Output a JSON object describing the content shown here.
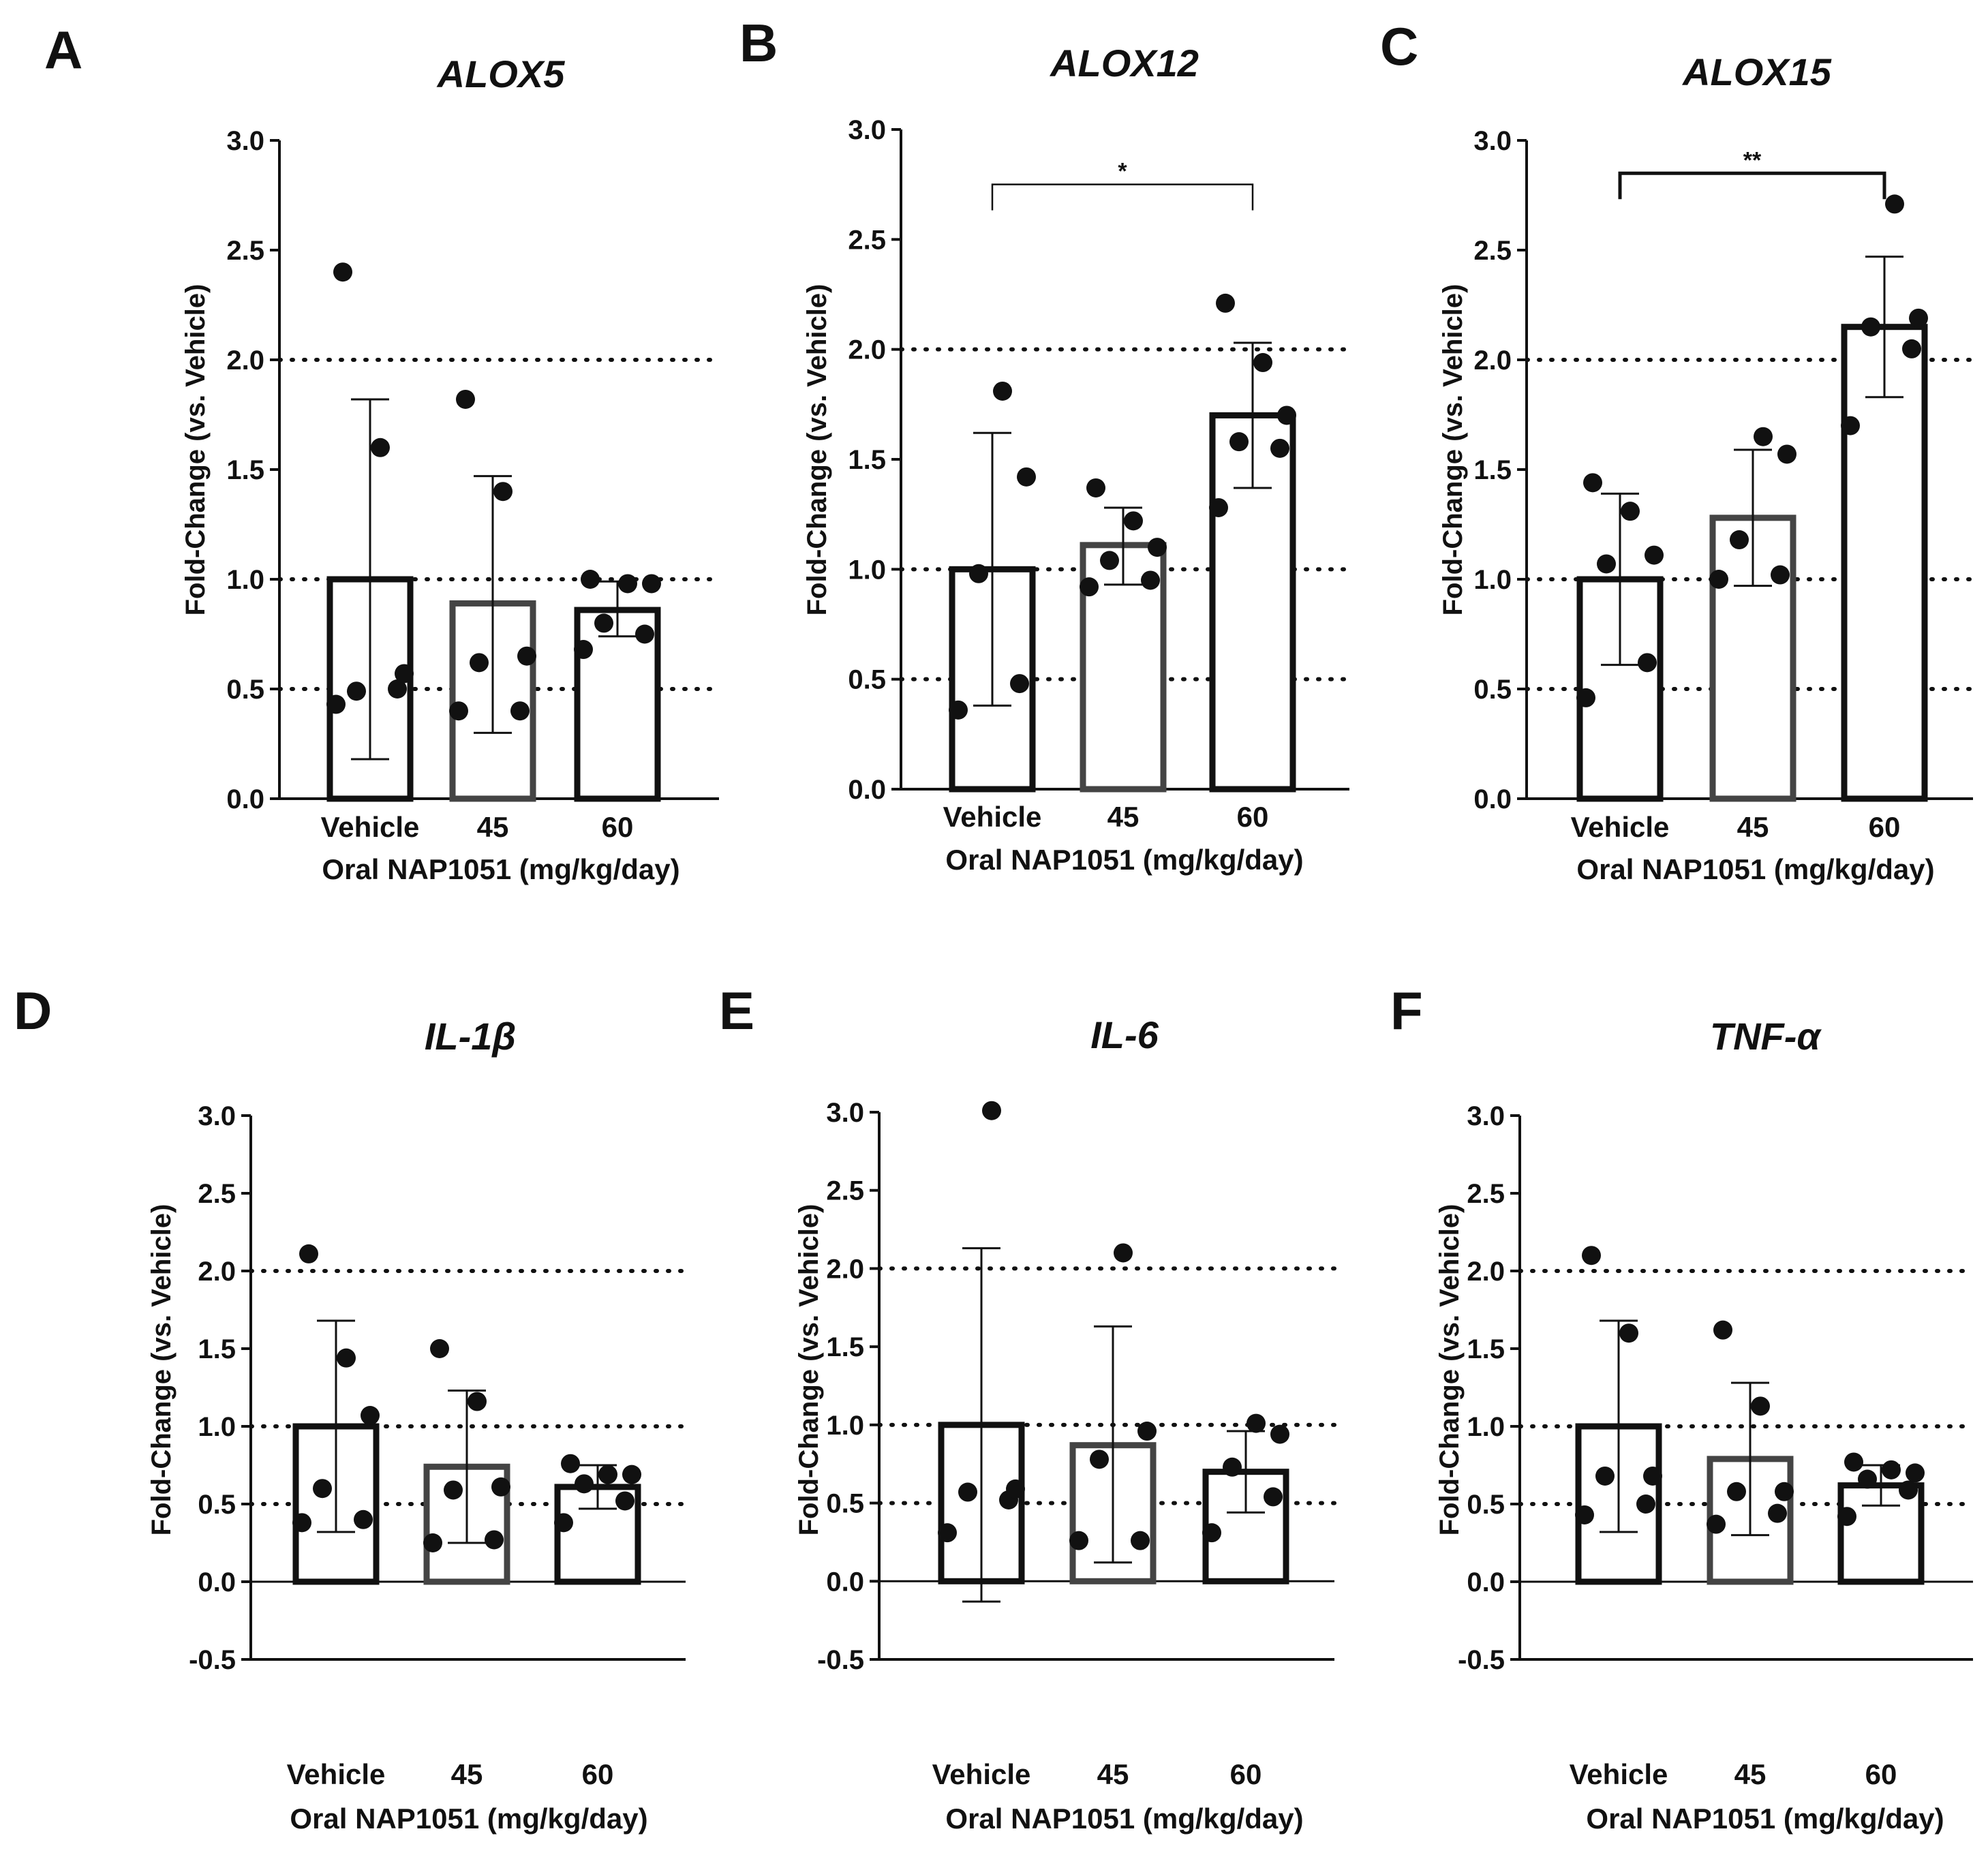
{
  "chart_data": [
    {
      "type": "bar",
      "panel": "A",
      "title": "ALOX5",
      "xlabel": "Oral NAP1051 (mg/kg/day)",
      "ylabel": "Fold-Change (vs. Vehicle)",
      "ylim": [
        0,
        3.0
      ],
      "yticks": [
        "0.0",
        "0.5",
        "1.0",
        "1.5",
        "2.0",
        "2.5",
        "3.0"
      ],
      "reference_lines": [
        0.5,
        1.0,
        2.0
      ],
      "categories": [
        "Vehicle",
        "45",
        "60"
      ],
      "values": [
        1.0,
        0.89,
        0.86
      ],
      "error_low": [
        0.18,
        0.3,
        0.74
      ],
      "error_high": [
        1.82,
        1.47,
        0.99
      ],
      "points": [
        [
          0.43,
          0.5,
          0.49,
          0.57,
          1.6,
          2.4
        ],
        [
          0.4,
          0.4,
          0.62,
          0.65,
          1.4,
          1.82
        ],
        [
          0.68,
          0.75,
          0.8,
          0.98,
          0.98,
          1.0
        ]
      ],
      "significance": null
    },
    {
      "type": "bar",
      "panel": "B",
      "title": "ALOX12",
      "xlabel": "Oral NAP1051 (mg/kg/day)",
      "ylabel": "Fold-Change (vs. Vehicle)",
      "ylim": [
        0,
        3.0
      ],
      "yticks": [
        "0.0",
        "0.5",
        "1.0",
        "1.5",
        "2.0",
        "2.5",
        "3.0"
      ],
      "reference_lines": [
        0.5,
        1.0,
        2.0
      ],
      "categories": [
        "Vehicle",
        "45",
        "60"
      ],
      "values": [
        1.0,
        1.11,
        1.7
      ],
      "error_low": [
        0.38,
        0.93,
        1.37
      ],
      "error_high": [
        1.62,
        1.28,
        2.03
      ],
      "points": [
        [
          0.36,
          0.48,
          0.98,
          1.42,
          1.81
        ],
        [
          0.92,
          0.95,
          1.04,
          1.1,
          1.22,
          1.37
        ],
        [
          1.28,
          1.55,
          1.58,
          1.7,
          1.94,
          2.21
        ]
      ],
      "significance": {
        "from": 0,
        "to": 2,
        "label": "*",
        "y": 2.75
      }
    },
    {
      "type": "bar",
      "panel": "C",
      "title": "ALOX15",
      "xlabel": "Oral NAP1051 (mg/kg/day)",
      "ylabel": "Fold-Change (vs. Vehicle)",
      "ylim": [
        0,
        3.0
      ],
      "yticks": [
        "0.0",
        "0.5",
        "1.0",
        "1.5",
        "2.0",
        "2.5",
        "3.0"
      ],
      "reference_lines": [
        0.5,
        1.0,
        2.0
      ],
      "categories": [
        "Vehicle",
        "45",
        "60"
      ],
      "values": [
        1.0,
        1.28,
        2.15
      ],
      "error_low": [
        0.61,
        0.97,
        1.83
      ],
      "error_high": [
        1.39,
        1.59,
        2.47
      ],
      "points": [
        [
          0.46,
          0.62,
          1.07,
          1.11,
          1.31,
          1.44
        ],
        [
          1.0,
          1.02,
          1.18,
          1.57,
          1.65
        ],
        [
          1.7,
          2.05,
          2.15,
          2.19,
          2.71
        ]
      ],
      "significance": {
        "from": 0,
        "to": 2,
        "label": "**",
        "y": 2.85
      }
    },
    {
      "type": "bar",
      "panel": "D",
      "title": "IL-1β",
      "xlabel": "Oral NAP1051 (mg/kg/day)",
      "ylabel": "Fold-Change (vs. Vehicle)",
      "ylim": [
        -0.5,
        3.0
      ],
      "yticks": [
        "-0.5",
        "0.0",
        "0.5",
        "1.0",
        "1.5",
        "2.0",
        "2.5",
        "3.0"
      ],
      "reference_lines": [
        0.5,
        1.0,
        2.0
      ],
      "categories": [
        "Vehicle",
        "45",
        "60"
      ],
      "values": [
        1.0,
        0.74,
        0.61
      ],
      "error_low": [
        0.32,
        0.25,
        0.47
      ],
      "error_high": [
        1.68,
        1.23,
        0.75
      ],
      "points": [
        [
          0.38,
          0.4,
          0.6,
          1.07,
          1.44,
          2.11
        ],
        [
          0.25,
          0.27,
          0.59,
          0.61,
          1.16,
          1.5
        ],
        [
          0.38,
          0.52,
          0.63,
          0.69,
          0.69,
          0.76
        ]
      ],
      "significance": null
    },
    {
      "type": "bar",
      "panel": "E",
      "title": "IL-6",
      "xlabel": "Oral NAP1051 (mg/kg/day)",
      "ylabel": "Fold-Change (vs. Vehicle)",
      "ylim": [
        -0.5,
        3.0
      ],
      "yticks": [
        "-0.5",
        "0.0",
        "0.5",
        "1.0",
        "1.5",
        "2.0",
        "2.5",
        "3.0"
      ],
      "reference_lines": [
        0.5,
        1.0,
        2.0
      ],
      "categories": [
        "Vehicle",
        "45",
        "60"
      ],
      "values": [
        1.0,
        0.87,
        0.7
      ],
      "error_low": [
        -0.13,
        0.12,
        0.44
      ],
      "error_high": [
        2.13,
        1.63,
        0.96
      ],
      "points": [
        [
          0.31,
          0.52,
          0.57,
          0.59,
          3.01
        ],
        [
          0.26,
          0.26,
          0.78,
          0.96,
          2.1
        ],
        [
          0.31,
          0.54,
          0.73,
          0.94,
          1.01
        ]
      ],
      "significance": null
    },
    {
      "type": "bar",
      "panel": "F",
      "title": "TNF-α",
      "xlabel": "Oral NAP1051 (mg/kg/day)",
      "ylabel": "Fold-Change (vs. Vehicle)",
      "ylim": [
        -0.5,
        3.0
      ],
      "yticks": [
        "-0.5",
        "0.0",
        "0.5",
        "1.0",
        "1.5",
        "2.0",
        "2.5",
        "3.0"
      ],
      "reference_lines": [
        0.5,
        1.0,
        2.0
      ],
      "categories": [
        "Vehicle",
        "45",
        "60"
      ],
      "values": [
        1.0,
        0.79,
        0.62
      ],
      "error_low": [
        0.32,
        0.3,
        0.49
      ],
      "error_high": [
        1.68,
        1.28,
        0.75
      ],
      "points": [
        [
          0.43,
          0.5,
          0.68,
          0.68,
          1.6,
          2.1
        ],
        [
          0.37,
          0.44,
          0.58,
          0.58,
          1.13,
          1.62
        ],
        [
          0.42,
          0.59,
          0.66,
          0.7,
          0.72,
          0.77
        ]
      ],
      "significance": null
    }
  ],
  "colors": {
    "ink": "#111111",
    "bar_fill": "#ffffff",
    "mid_bar_stroke": "#444444",
    "ref_line": "#111111"
  }
}
